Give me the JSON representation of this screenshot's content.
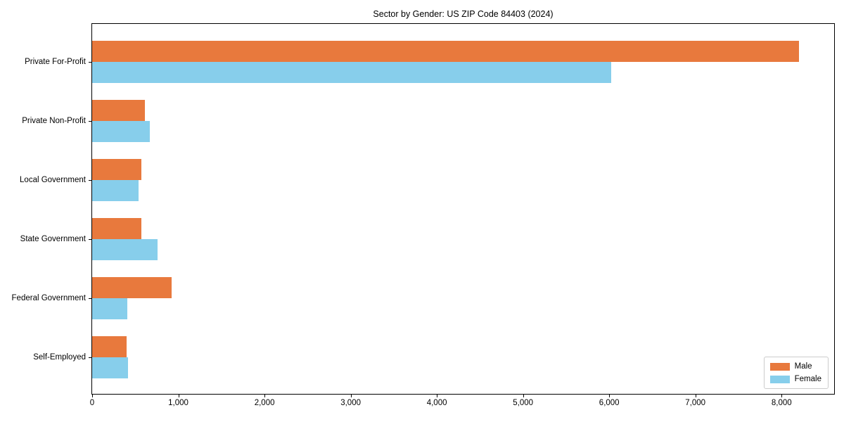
{
  "chart_data": {
    "type": "bar",
    "orientation": "horizontal",
    "title": "Sector by Gender: US ZIP Code 84403 (2024)",
    "categories": [
      "Private For-Profit",
      "Private Non-Profit",
      "Local Government",
      "State Government",
      "Federal Government",
      "Self-Employed"
    ],
    "series": [
      {
        "name": "Male",
        "color": "#e8793d",
        "values": [
          8200,
          615,
          570,
          570,
          920,
          400
        ]
      },
      {
        "name": "Female",
        "color": "#87ceeb",
        "values": [
          6020,
          665,
          540,
          755,
          410,
          415
        ]
      }
    ],
    "xlabel": "",
    "ylabel": "",
    "xlim": [
      0,
      8610
    ],
    "x_ticks": [
      0,
      1000,
      2000,
      3000,
      4000,
      5000,
      6000,
      7000,
      8000
    ],
    "x_tick_labels": [
      "0",
      "1,000",
      "2,000",
      "3,000",
      "4,000",
      "5,000",
      "6,000",
      "7,000",
      "8,000"
    ],
    "grid": false,
    "legend": {
      "position": "lower right",
      "entries": [
        "Male",
        "Female"
      ]
    }
  }
}
